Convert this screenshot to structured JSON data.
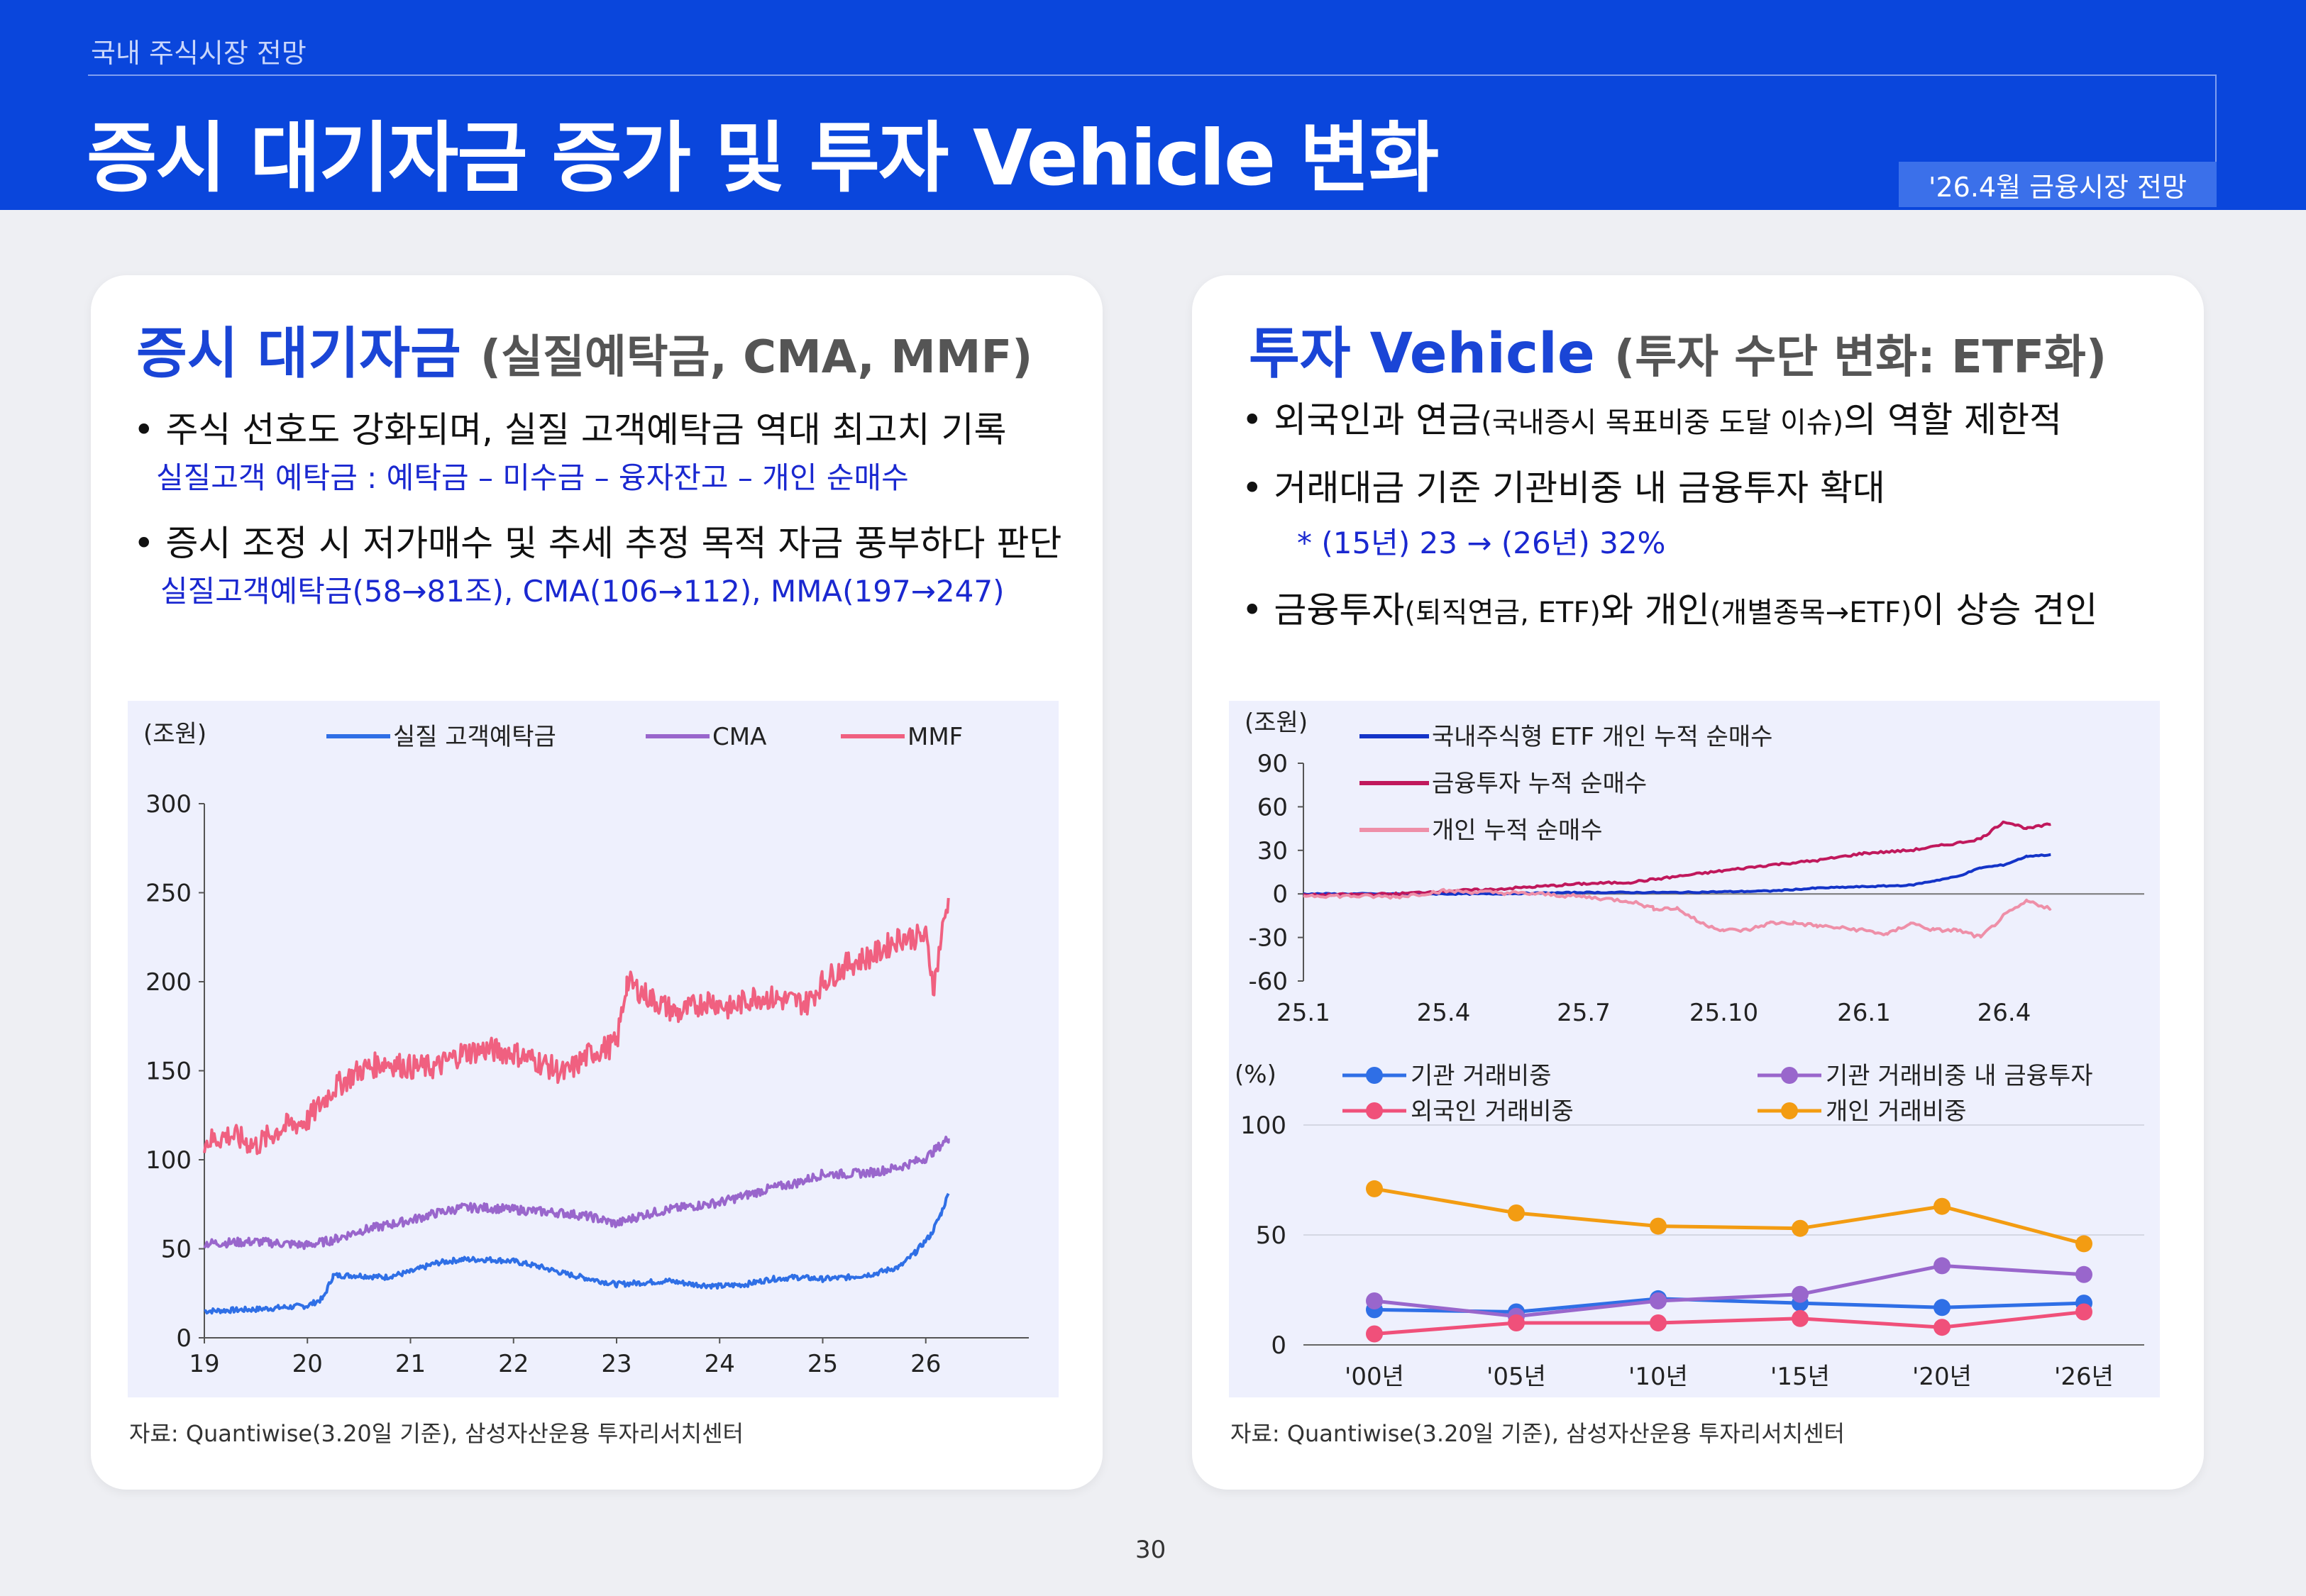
{
  "header": {
    "section": "국내 주식시장 전망",
    "title": "증시 대기자금 증가 및 투자 Vehicle 변화",
    "badge": "'26.4월 금융시장 전망"
  },
  "left": {
    "title": "증시 대기자금",
    "subtitle": "(실질예탁금, CMA, MMF)",
    "bullet1": "• 주식 선호도 강화되며, 실질 고객예탁금 역대 최고치 기록",
    "note1": "실질고객 예탁금 : 예탁금 – 미수금 – 융자잔고 – 개인 순매수",
    "bullet2": "• 증시 조정 시 저가매수 및 추세 추정 목적 자금 풍부하다 판단",
    "note2": "실질고객예탁금(58→81조), CMA(106→112), MMA(197→247)",
    "source": "자료: Quantiwise(3.20일 기준),  삼성자산운용 투자리서치센터"
  },
  "right": {
    "title": "투자 Vehicle",
    "subtitle": "(투자 수단 변화: ETF화)",
    "bullet1_main": "• 외국인과 연금",
    "bullet1_small": "(국내증시 목표비중 도달 이슈)",
    "bullet1_end": "의 역할 제한적",
    "bullet2": "• 거래대금 기준 기관비중 내 금융투자 확대",
    "note": "* (15년) 23 → (26년) 32%",
    "bullet3_a": "• 금융투자",
    "bullet3_b": "(퇴직연금, ETF)",
    "bullet3_c": "와 개인",
    "bullet3_d": "(개별종목→ETF)",
    "bullet3_e": "이 상승 견인",
    "source": "자료: Quantiwise(3.20일 기준),  삼성자산운용 투자리서치센터"
  },
  "page_number": "30",
  "chart_data": [
    {
      "type": "line",
      "unit_label": "(조원)",
      "ylim": [
        0,
        300
      ],
      "yticks": [
        "0",
        "50",
        "100",
        "150",
        "200",
        "250",
        "300"
      ],
      "xticks": [
        "19",
        "20",
        "21",
        "22",
        "23",
        "24",
        "25",
        "26"
      ],
      "x_range": [
        2019.0,
        2027.0
      ],
      "legend_position": "top",
      "series": [
        {
          "name": "실질 고객예탁금",
          "color": "#2f6fe6",
          "points": [
            [
              2019.0,
              15
            ],
            [
              2019.5,
              16
            ],
            [
              2020.0,
              18
            ],
            [
              2020.15,
              22
            ],
            [
              2020.25,
              35
            ],
            [
              2020.5,
              35
            ],
            [
              2020.75,
              34
            ],
            [
              2021.0,
              37
            ],
            [
              2021.25,
              42
            ],
            [
              2021.5,
              44
            ],
            [
              2021.75,
              44
            ],
            [
              2022.0,
              43
            ],
            [
              2022.25,
              40
            ],
            [
              2022.5,
              36
            ],
            [
              2022.75,
              33
            ],
            [
              2023.0,
              30
            ],
            [
              2023.25,
              31
            ],
            [
              2023.5,
              32
            ],
            [
              2023.75,
              30
            ],
            [
              2024.0,
              29
            ],
            [
              2024.25,
              30
            ],
            [
              2024.5,
              33
            ],
            [
              2024.75,
              34
            ],
            [
              2025.0,
              33
            ],
            [
              2025.25,
              34
            ],
            [
              2025.5,
              36
            ],
            [
              2025.75,
              40
            ],
            [
              2025.9,
              48
            ],
            [
              2026.05,
              58
            ],
            [
              2026.15,
              70
            ],
            [
              2026.22,
              81
            ]
          ]
        },
        {
          "name": "CMA",
          "color": "#9966cc",
          "points": [
            [
              2019.0,
              53
            ],
            [
              2019.5,
              54
            ],
            [
              2020.0,
              52
            ],
            [
              2020.25,
              55
            ],
            [
              2020.5,
              60
            ],
            [
              2020.75,
              63
            ],
            [
              2021.0,
              66
            ],
            [
              2021.25,
              70
            ],
            [
              2021.5,
              73
            ],
            [
              2021.75,
              73
            ],
            [
              2022.0,
              72
            ],
            [
              2022.25,
              71
            ],
            [
              2022.5,
              70
            ],
            [
              2022.75,
              68
            ],
            [
              2023.0,
              64
            ],
            [
              2023.25,
              69
            ],
            [
              2023.5,
              72
            ],
            [
              2023.75,
              74
            ],
            [
              2024.0,
              76
            ],
            [
              2024.25,
              80
            ],
            [
              2024.5,
              84
            ],
            [
              2024.75,
              87
            ],
            [
              2025.0,
              92
            ],
            [
              2025.25,
              92
            ],
            [
              2025.5,
              93
            ],
            [
              2025.75,
              96
            ],
            [
              2026.0,
              101
            ],
            [
              2026.1,
              106
            ],
            [
              2026.22,
              112
            ]
          ]
        },
        {
          "name": "MMF",
          "color": "#f06080",
          "points": [
            [
              2019.0,
              110
            ],
            [
              2019.25,
              114
            ],
            [
              2019.5,
              108
            ],
            [
              2019.75,
              118
            ],
            [
              2020.0,
              122
            ],
            [
              2020.25,
              140
            ],
            [
              2020.5,
              150
            ],
            [
              2020.75,
              155
            ],
            [
              2021.0,
              152
            ],
            [
              2021.25,
              152
            ],
            [
              2021.5,
              160
            ],
            [
              2021.75,
              162
            ],
            [
              2022.0,
              160
            ],
            [
              2022.25,
              155
            ],
            [
              2022.5,
              148
            ],
            [
              2022.75,
              160
            ],
            [
              2023.0,
              165
            ],
            [
              2023.1,
              200
            ],
            [
              2023.35,
              190
            ],
            [
              2023.6,
              182
            ],
            [
              2023.9,
              190
            ],
            [
              2024.1,
              185
            ],
            [
              2024.35,
              192
            ],
            [
              2024.6,
              190
            ],
            [
              2024.85,
              188
            ],
            [
              2025.0,
              200
            ],
            [
              2025.25,
              210
            ],
            [
              2025.5,
              215
            ],
            [
              2025.75,
              225
            ],
            [
              2026.0,
              225
            ],
            [
              2026.08,
              197
            ],
            [
              2026.15,
              225
            ],
            [
              2026.22,
              247
            ]
          ]
        }
      ]
    },
    {
      "type": "line",
      "unit_label": "(조원)",
      "ylim": [
        -60,
        90
      ],
      "yticks": [
        "-60",
        "-30",
        "0",
        "30",
        "60",
        "90"
      ],
      "xticks": [
        "25.1",
        "25.4",
        "25.7",
        "25.10",
        "26.1",
        "26.4"
      ],
      "x_range": [
        0,
        18
      ],
      "legend_position": "top-left",
      "series": [
        {
          "name": "국내주식형 ETF 개인 누적 순매수",
          "color": "#1434c8",
          "points": [
            [
              0,
              0
            ],
            [
              2,
              0
            ],
            [
              4,
              0
            ],
            [
              6,
              1
            ],
            [
              8,
              1
            ],
            [
              10,
              2
            ],
            [
              11,
              4
            ],
            [
              12,
              5
            ],
            [
              13,
              6
            ],
            [
              13.5,
              9
            ],
            [
              14,
              12
            ],
            [
              14.5,
              18
            ],
            [
              15,
              20
            ],
            [
              15.5,
              26
            ],
            [
              16,
              27
            ]
          ]
        },
        {
          "name": "금융투자 누적 순매수",
          "color": "#c0185c",
          "points": [
            [
              0,
              -1
            ],
            [
              2,
              0
            ],
            [
              3,
              2
            ],
            [
              4,
              3
            ],
            [
              5,
              5
            ],
            [
              6,
              7
            ],
            [
              7,
              8
            ],
            [
              8,
              12
            ],
            [
              9,
              16
            ],
            [
              10,
              20
            ],
            [
              11,
              23
            ],
            [
              12,
              28
            ],
            [
              13,
              30
            ],
            [
              14,
              35
            ],
            [
              14.5,
              38
            ],
            [
              15,
              50
            ],
            [
              15.5,
              45
            ],
            [
              16,
              48
            ]
          ]
        },
        {
          "name": "개인 누적 순매수",
          "color": "#ee8fa8",
          "points": [
            [
              0,
              -1
            ],
            [
              2,
              -2
            ],
            [
              3,
              2
            ],
            [
              4,
              1
            ],
            [
              5,
              0
            ],
            [
              6,
              -2
            ],
            [
              7,
              -5
            ],
            [
              7.5,
              -10
            ],
            [
              8,
              -10
            ],
            [
              8.5,
              -20
            ],
            [
              9,
              -25
            ],
            [
              9.5,
              -25
            ],
            [
              10,
              -20
            ],
            [
              10.5,
              -20
            ],
            [
              11,
              -22
            ],
            [
              12,
              -25
            ],
            [
              12.5,
              -28
            ],
            [
              13,
              -20
            ],
            [
              13.5,
              -25
            ],
            [
              14,
              -25
            ],
            [
              14.5,
              -30
            ],
            [
              15,
              -15
            ],
            [
              15.5,
              -5
            ],
            [
              16,
              -10
            ]
          ]
        }
      ]
    },
    {
      "type": "line",
      "unit_label": "(%)",
      "ylim": [
        0,
        100
      ],
      "yticks": [
        "0",
        "50",
        "100"
      ],
      "categories": [
        "'00년",
        "'05년",
        "'10년",
        "'15년",
        "'20년",
        "'26년"
      ],
      "legend_position": "top",
      "series": [
        {
          "name": "기관 거래비중",
          "color": "#2f6fe6",
          "values": [
            16,
            15,
            21,
            19,
            17,
            19
          ]
        },
        {
          "name": "기관 거래비중 내 금융투자",
          "color": "#9966cc",
          "values": [
            20,
            13,
            20,
            23,
            36,
            32
          ]
        },
        {
          "name": "외국인 거래비중",
          "color": "#f0507a",
          "values": [
            5,
            10,
            10,
            12,
            8,
            15
          ]
        },
        {
          "name": "개인 거래비중",
          "color": "#f39c12",
          "values": [
            71,
            60,
            54,
            53,
            63,
            46
          ]
        }
      ]
    }
  ]
}
